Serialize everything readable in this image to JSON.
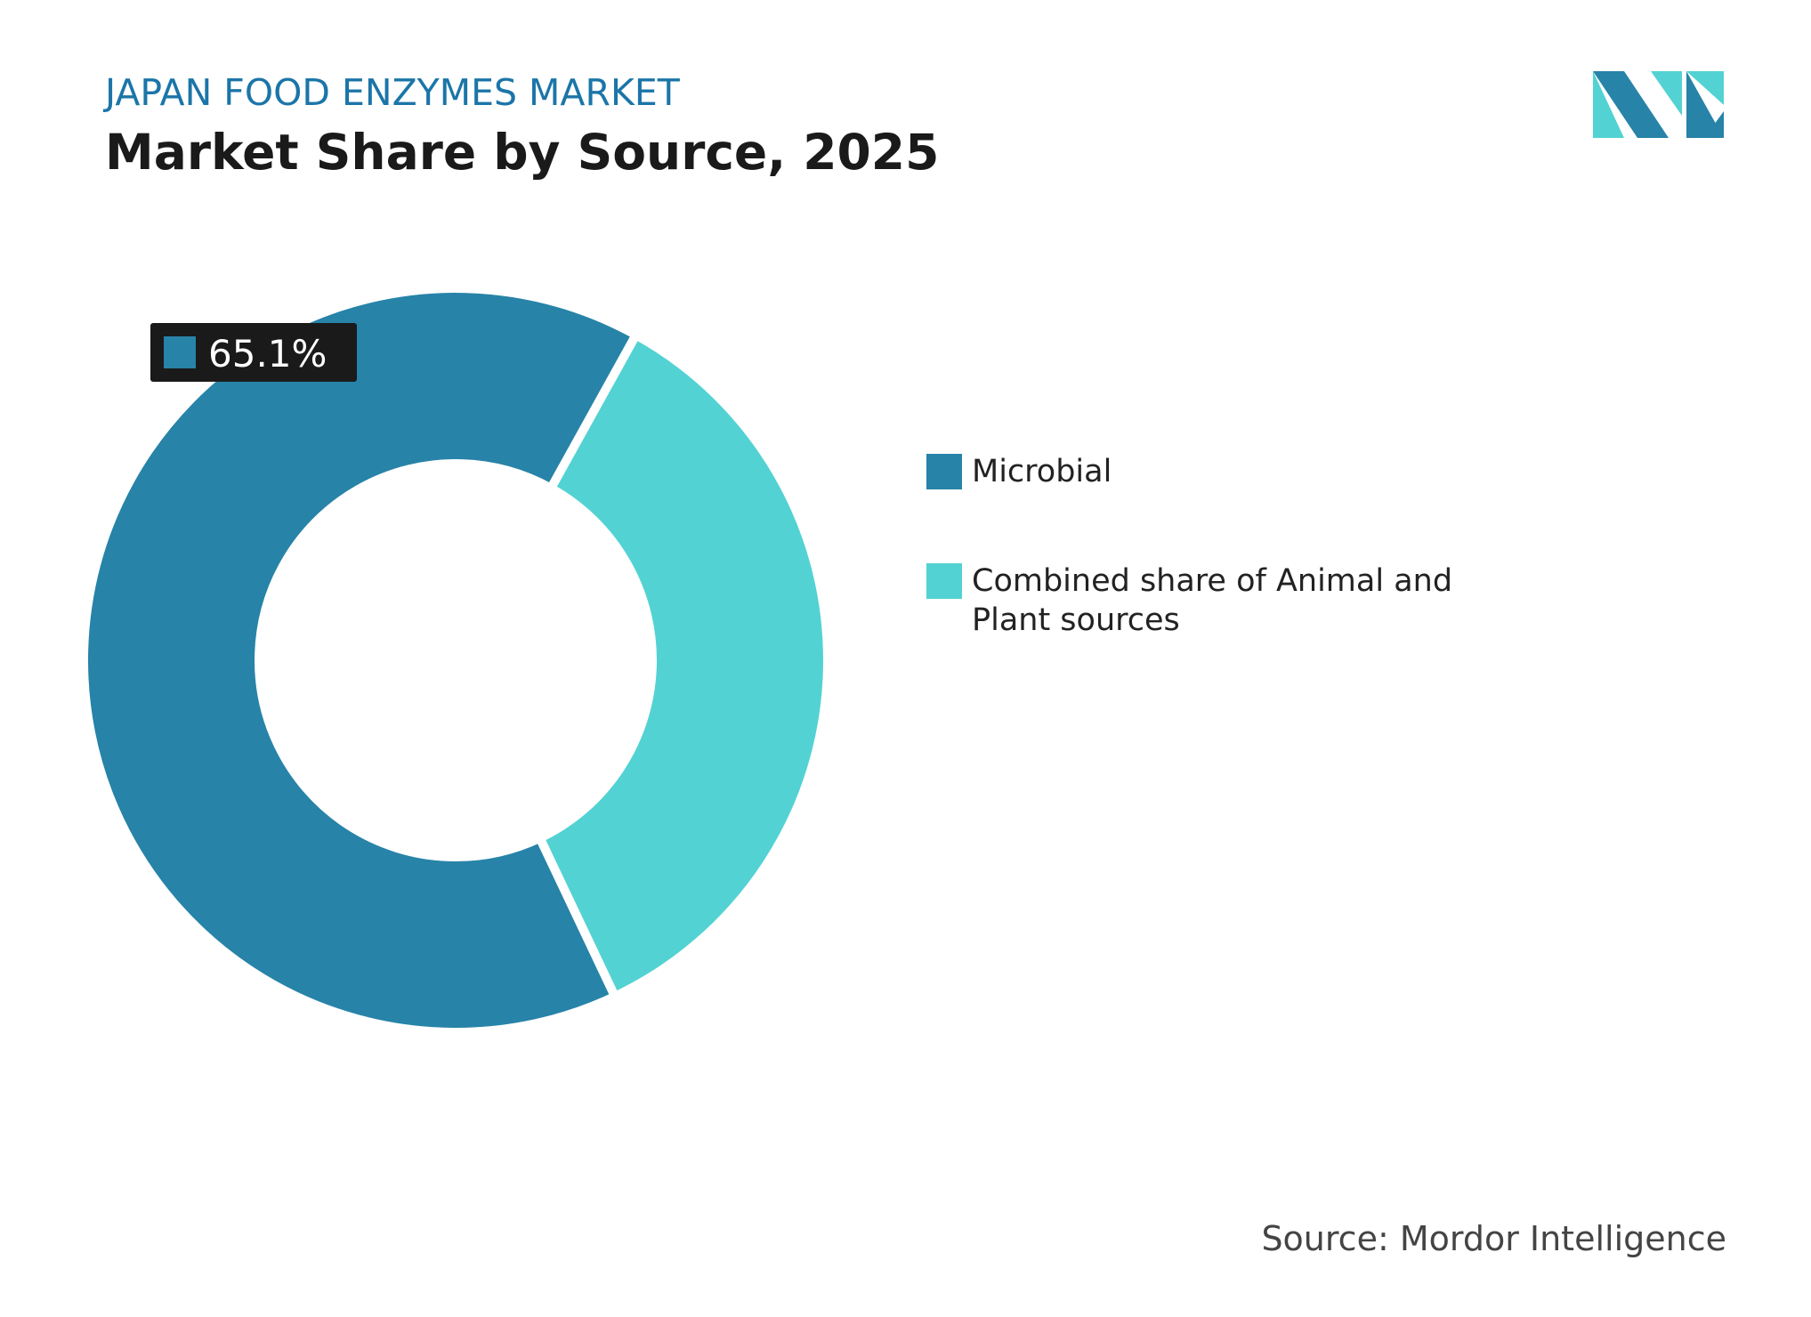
{
  "chart_data": {
    "type": "donut",
    "subtitle": "JAPAN FOOD ENZYMES MARKET",
    "title": "Market Share by Source, 2025",
    "categories": [
      "Microbial",
      "Combined share of Animal and Plant sources"
    ],
    "values": [
      65.1,
      34.9
    ],
    "value_labels": [
      "65.1%",
      null
    ],
    "colors": [
      "#2783a8",
      "#53d2d3"
    ],
    "legend": "right",
    "source": "Source: Mordor Intelligence"
  }
}
